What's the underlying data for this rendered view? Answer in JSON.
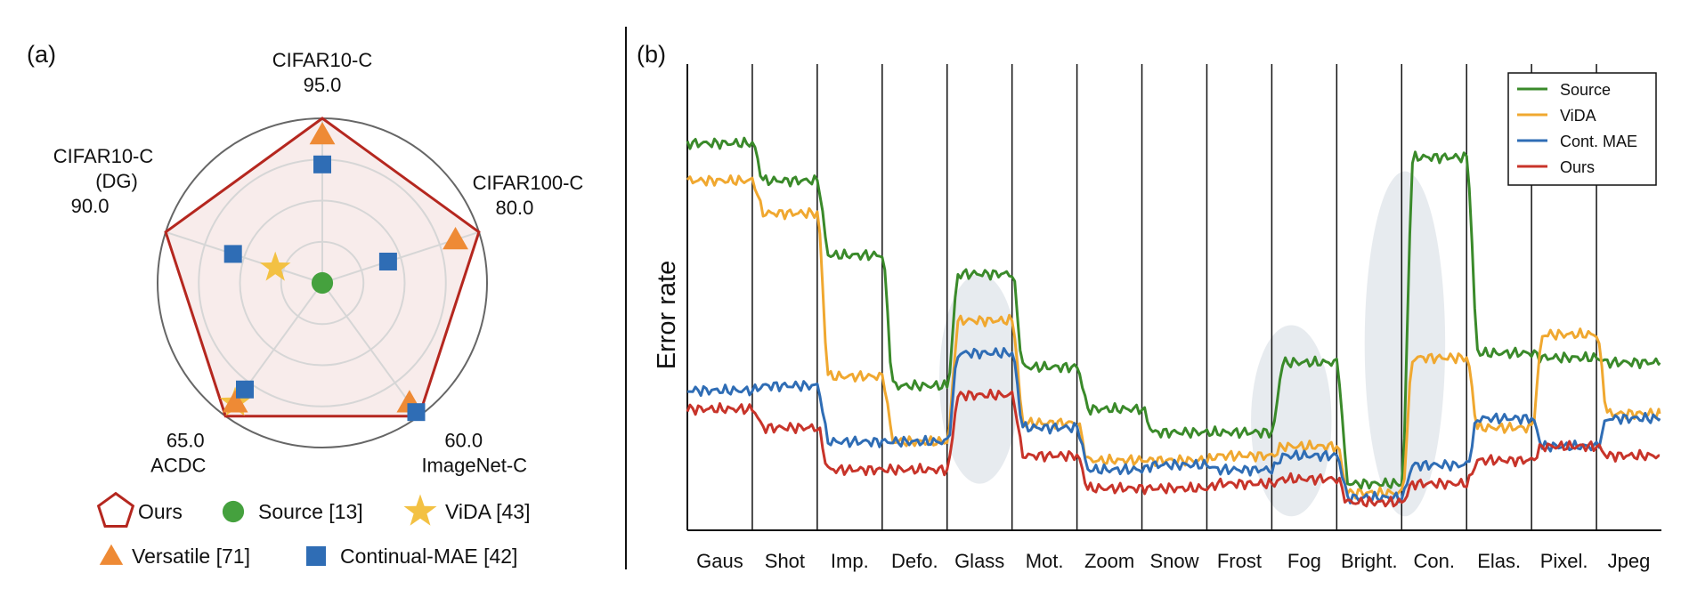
{
  "panel_a": {
    "label": "(a)",
    "chart_data": {
      "type": "radar",
      "axes": [
        {
          "name": "CIFAR10-C",
          "max_label": "95.0"
        },
        {
          "name": "CIFAR100-C",
          "max_label": "80.0"
        },
        {
          "name": "ImageNet-C",
          "max_label": "60.0"
        },
        {
          "name": "ACDC",
          "max_label": "65.0"
        },
        {
          "name": "CIFAR10-C\n(DG)",
          "max_label": "90.0"
        }
      ],
      "rings": 4,
      "series": [
        {
          "name": "Ours",
          "marker": "pentagon",
          "color": "#b5271f",
          "values": [
            1.0,
            1.0,
            1.0,
            1.0,
            1.0
          ]
        },
        {
          "name": "Source [13]",
          "marker": "circle",
          "color": "#45a13e",
          "values": [
            0.0,
            0.0,
            0.0,
            0.0,
            0.0
          ]
        },
        {
          "name": "ViDA [43]",
          "marker": "star",
          "color": "#f3c143",
          "values": [
            0.0,
            0.0,
            0.0,
            0.9,
            0.3
          ]
        },
        {
          "name": "Versatile [71]",
          "marker": "triangle",
          "color": "#ee8a35",
          "values": [
            0.9,
            0.85,
            0.9,
            0.9,
            0.0
          ]
        },
        {
          "name": "Continual-MAE [42]",
          "marker": "square",
          "color": "#2f6db5",
          "values": [
            0.72,
            0.42,
            0.97,
            0.8,
            0.57
          ]
        }
      ]
    }
  },
  "panel_b": {
    "label": "(b)",
    "chart_data": {
      "type": "line",
      "ylabel": "Error rate",
      "xlabel": "",
      "categories": [
        "Gaus",
        "Shot",
        "Imp.",
        "Defo.",
        "Glass",
        "Mot.",
        "Zoom",
        "Snow",
        "Frost",
        "Fog",
        "Bright.",
        "Con.",
        "Elas.",
        "Pixel.",
        "Jpeg"
      ],
      "ylim": [
        0,
        1
      ],
      "legend_position": "top-right",
      "highlights": [
        {
          "center": 4.5,
          "low": 0.1,
          "high": 0.55
        },
        {
          "center": 9.3,
          "low": 0.03,
          "high": 0.44
        },
        {
          "center": 11.05,
          "low": 0.03,
          "high": 0.77
        }
      ],
      "series": [
        {
          "name": "Source",
          "color": "#3a8a2a",
          "values": [
            0.83,
            0.75,
            0.59,
            0.31,
            0.55,
            0.35,
            0.26,
            0.21,
            0.21,
            0.36,
            0.1,
            0.8,
            0.38,
            0.37,
            0.36
          ]
        },
        {
          "name": "ViDA",
          "color": "#f0a830",
          "values": [
            0.75,
            0.68,
            0.33,
            0.19,
            0.45,
            0.23,
            0.15,
            0.15,
            0.16,
            0.18,
            0.08,
            0.37,
            0.22,
            0.42,
            0.25
          ]
        },
        {
          "name": "Cont. MAE",
          "color": "#2f6db5",
          "values": [
            0.3,
            0.31,
            0.19,
            0.19,
            0.38,
            0.22,
            0.13,
            0.14,
            0.13,
            0.16,
            0.07,
            0.14,
            0.24,
            0.18,
            0.24
          ]
        },
        {
          "name": "Ours",
          "color": "#c8342a",
          "values": [
            0.26,
            0.22,
            0.13,
            0.13,
            0.29,
            0.16,
            0.09,
            0.09,
            0.1,
            0.11,
            0.06,
            0.1,
            0.15,
            0.18,
            0.16
          ]
        }
      ]
    }
  }
}
